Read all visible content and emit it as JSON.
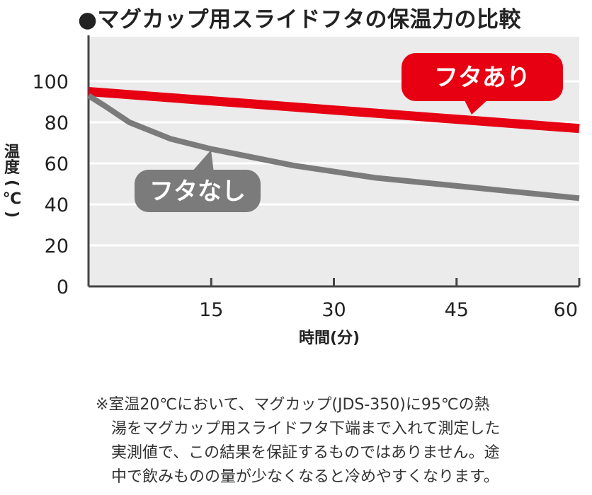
{
  "title": "●マグカップ用スライドフタの保温力の比較",
  "chart_data": {
    "type": "line",
    "title": "●マグカップ用スライドフタの保温力の比較",
    "xlabel": "時間(分)",
    "ylabel": "温度(℃)",
    "xlim": [
      0,
      60
    ],
    "ylim": [
      0,
      100
    ],
    "x_ticks": [
      15,
      30,
      45,
      60
    ],
    "y_ticks": [
      0,
      20,
      40,
      60,
      80,
      100
    ],
    "grid": true,
    "series": [
      {
        "name": "フタあり",
        "color": "#e60012",
        "x": [
          0,
          10,
          20,
          30,
          40,
          50,
          60
        ],
        "y": [
          95,
          92,
          89,
          86,
          83,
          80,
          77
        ]
      },
      {
        "name": "フタなし",
        "color": "#7b7b7b",
        "x": [
          0,
          2,
          5,
          10,
          15,
          20,
          25,
          30,
          35,
          40,
          45,
          50,
          55,
          60
        ],
        "y": [
          93,
          88,
          80,
          72,
          67,
          63,
          59,
          56,
          53,
          51,
          49,
          47,
          45,
          43
        ]
      }
    ],
    "colors": {
      "plot_background": "#ebebeb",
      "gridline": "#ffffff",
      "axis": "#444444"
    }
  },
  "note": {
    "lines": [
      "※室温20℃において、マグカップ(JDS-350)に95℃の熱",
      "湯をマグカップ用スライドフタ下端まで入れて測定した",
      "実測値で、この結果を保証するものではありません。途",
      "中で飲みものの量が少なくなると冷めやすくなります。"
    ]
  }
}
